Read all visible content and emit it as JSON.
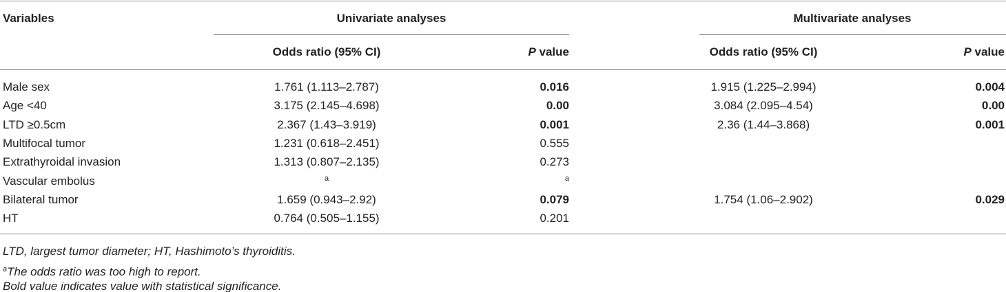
{
  "table": {
    "header": {
      "variables": "Variables",
      "univariate": "Univariate analyses",
      "multivariate": "Multivariate analyses",
      "columns": [
        {
          "text": "Odds ratio (95% CI)"
        },
        {
          "italic": "P",
          "text": "value"
        },
        {
          "text": "Odds ratio (95% CI)"
        },
        {
          "italic": "P",
          "text": "value"
        }
      ]
    },
    "rows": [
      [
        {
          "text": "Male sex"
        },
        {
          "text": "1.761 (1.113–2.787)"
        },
        {
          "text": "0.016",
          "bold": true
        },
        {
          "text": "1.915 (1.225–2.994)"
        },
        {
          "text": "0.004",
          "bold": true
        }
      ],
      [
        {
          "text": "Age <40"
        },
        {
          "text": "3.175 (2.145–4.698)"
        },
        {
          "text": "0.00",
          "bold": true
        },
        {
          "text": "3.084 (2.095–4.54)"
        },
        {
          "text": "0.00",
          "bold": true
        }
      ],
      [
        {
          "text": "LTD ≥0.5cm"
        },
        {
          "text": "2.367 (1.43–3.919)"
        },
        {
          "text": "0.001",
          "bold": true
        },
        {
          "text": "2.36 (1.44–3.868)"
        },
        {
          "text": "0.001",
          "bold": true
        }
      ],
      [
        {
          "text": "Multifocal tumor"
        },
        {
          "text": "1.231 (0.618–2.451)"
        },
        {
          "text": "0.555"
        },
        null,
        null
      ],
      [
        {
          "text": "Extrathyroidal invasion"
        },
        {
          "text": "1.313 (0.807–2.135)"
        },
        {
          "text": "0.273"
        },
        null,
        null
      ],
      [
        {
          "text": "Vascular embolus"
        },
        {
          "sup": "a"
        },
        {
          "sup": "a"
        },
        null,
        null
      ],
      [
        {
          "text": "Bilateral tumor"
        },
        {
          "text": "1.659 (0.943–2.92)"
        },
        {
          "text": "0.079",
          "bold": true
        },
        {
          "text": "1.754 (1.06–2.902)"
        },
        {
          "text": "0.029",
          "bold": true
        }
      ],
      [
        {
          "text": "HT"
        },
        {
          "text": "0.764 (0.505–1.155)"
        },
        {
          "text": "0.201"
        },
        null,
        null
      ]
    ],
    "footnotes": [
      {
        "text": "LTD, largest tumor diameter; HT, Hashimoto’s thyroiditis."
      },
      {
        "sup": "a",
        "text": "The odds ratio was too high to report."
      },
      {
        "text": "Bold value indicates value with statistical significance."
      }
    ]
  }
}
